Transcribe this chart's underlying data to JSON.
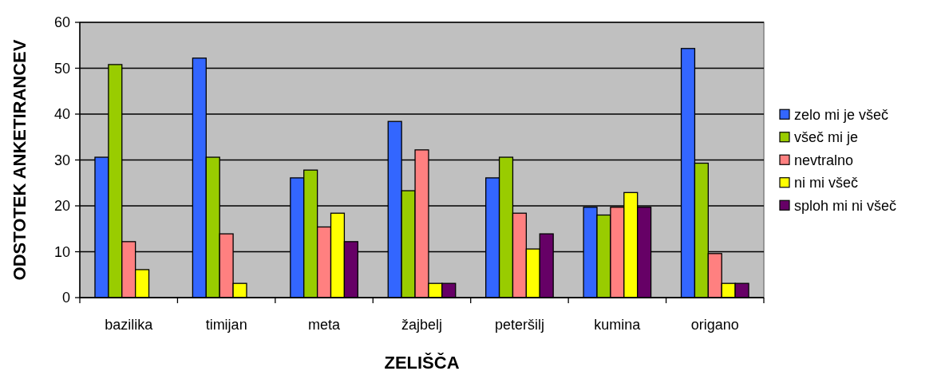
{
  "chart_data": {
    "type": "bar",
    "xlabel": "ZELIŠČA",
    "ylabel": "ODSTOTEK ANKETIRANCEV",
    "categories": [
      "bazilika",
      "timijan",
      "meta",
      "žajbelj",
      "peteršilj",
      "kumina",
      "origano"
    ],
    "series": [
      {
        "name": "zelo mi je všeč",
        "color": "#3366ff",
        "values": [
          30.6,
          52.2,
          26.1,
          38.4,
          26.1,
          19.7,
          54.3
        ]
      },
      {
        "name": "všeč mi je",
        "color": "#99cc00",
        "values": [
          50.8,
          30.6,
          27.8,
          23.3,
          30.6,
          18.0,
          29.3
        ]
      },
      {
        "name": "nevtralno",
        "color": "#ff8080",
        "values": [
          12.2,
          13.9,
          15.4,
          32.2,
          18.4,
          19.7,
          9.6
        ]
      },
      {
        "name": "ni mi všeč",
        "color": "#ffff00",
        "values": [
          6.1,
          3.1,
          18.4,
          3.1,
          10.6,
          22.9,
          3.1
        ]
      },
      {
        "name": "sploh mi ni všeč",
        "color": "#660066",
        "values": [
          null,
          null,
          12.2,
          3.1,
          13.9,
          19.7,
          3.1
        ]
      }
    ],
    "ylim": [
      0,
      60
    ],
    "yticks": [
      0,
      10,
      20,
      30,
      40,
      50,
      60
    ],
    "grid": "y",
    "legend": "right"
  }
}
